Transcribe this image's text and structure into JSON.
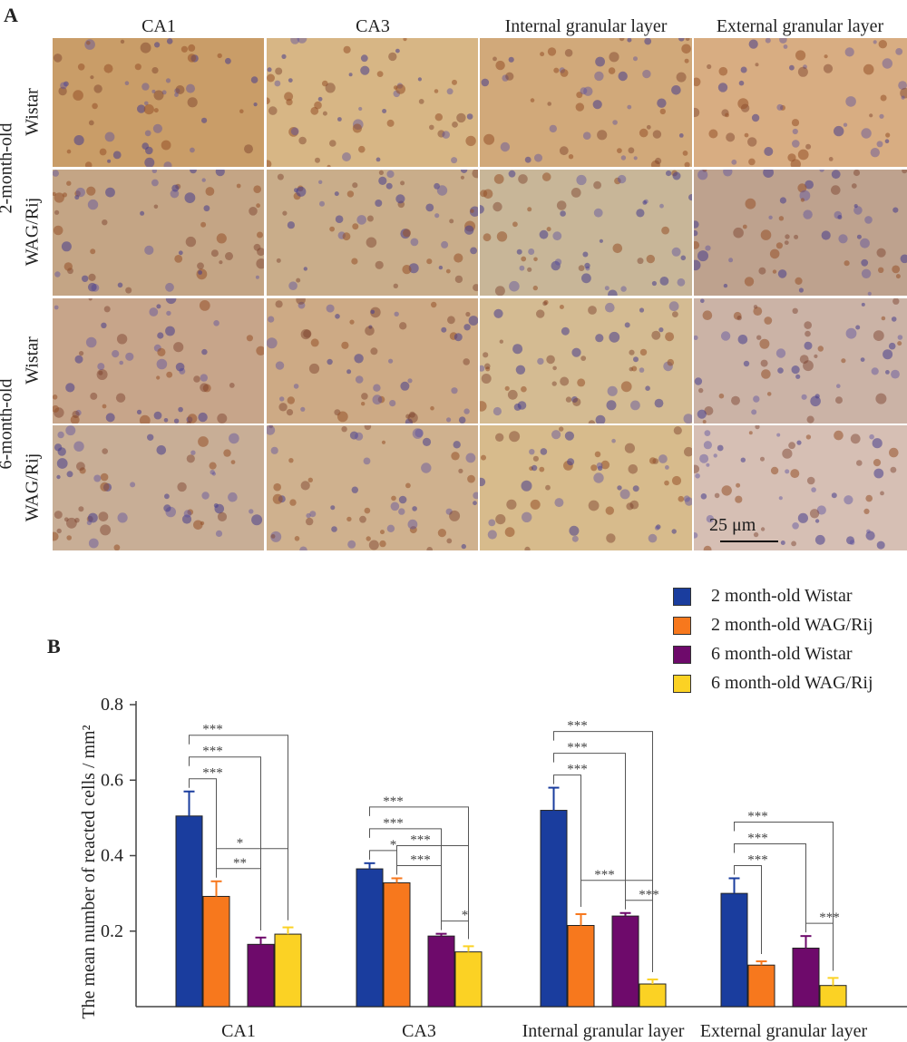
{
  "panel_a": {
    "letter": "A",
    "column_headers": [
      "CA1",
      "CA3",
      "Internal granular layer",
      "External granular layer"
    ],
    "age_groups": [
      "2-month-old",
      "6-month-old"
    ],
    "row_labels": [
      "Wistar",
      "WAG/Rij",
      "Wistar",
      "WAG/Rij"
    ],
    "scale_bar": "25 μm"
  },
  "panel_b": {
    "letter": "B"
  },
  "chart_data": {
    "type": "bar",
    "ylabel": "The mean number of reacted cells / mm²",
    "ylim": [
      0,
      0.8
    ],
    "yticks": [
      "0.2",
      "0.4",
      "0.6",
      "0.8"
    ],
    "categories": [
      "CA1",
      "CA3",
      "Internal granular layer",
      "External granular layer"
    ],
    "series": [
      {
        "name": "2 month-old Wistar",
        "color": "#1a3d9e",
        "values": [
          0.505,
          0.365,
          0.52,
          0.3
        ],
        "errors": [
          0.065,
          0.015,
          0.06,
          0.04
        ]
      },
      {
        "name": "2 month-old WAG/Rij",
        "color": "#f7781d",
        "values": [
          0.292,
          0.328,
          0.215,
          0.11
        ],
        "errors": [
          0.04,
          0.012,
          0.03,
          0.01
        ]
      },
      {
        "name": "6 month-old Wistar",
        "color": "#6e0a6b",
        "values": [
          0.165,
          0.187,
          0.24,
          0.155
        ],
        "errors": [
          0.018,
          0.006,
          0.008,
          0.032
        ]
      },
      {
        "name": "6 month-old WAG/Rij",
        "color": "#fbd224",
        "values": [
          0.192,
          0.145,
          0.06,
          0.056
        ],
        "errors": [
          0.018,
          0.015,
          0.012,
          0.02
        ]
      }
    ],
    "legend_position": "top-right",
    "significance": [
      {
        "category": 0,
        "from": 0,
        "to": 1,
        "label": "***"
      },
      {
        "category": 0,
        "from": 0,
        "to": 2,
        "label": "***"
      },
      {
        "category": 0,
        "from": 0,
        "to": 3,
        "label": "***"
      },
      {
        "category": 0,
        "from": 1,
        "to": 2,
        "label": "**"
      },
      {
        "category": 0,
        "from": 1,
        "to": 3,
        "label": "*"
      },
      {
        "category": 1,
        "from": 0,
        "to": 1,
        "label": "*"
      },
      {
        "category": 1,
        "from": 0,
        "to": 2,
        "label": "***"
      },
      {
        "category": 1,
        "from": 0,
        "to": 3,
        "label": "***"
      },
      {
        "category": 1,
        "from": 1,
        "to": 2,
        "label": "***"
      },
      {
        "category": 1,
        "from": 1,
        "to": 3,
        "label": "***"
      },
      {
        "category": 1,
        "from": 2,
        "to": 3,
        "label": "*"
      },
      {
        "category": 2,
        "from": 0,
        "to": 1,
        "label": "***"
      },
      {
        "category": 2,
        "from": 0,
        "to": 2,
        "label": "***"
      },
      {
        "category": 2,
        "from": 0,
        "to": 3,
        "label": "***"
      },
      {
        "category": 2,
        "from": 1,
        "to": 3,
        "label": "***"
      },
      {
        "category": 2,
        "from": 2,
        "to": 3,
        "label": "***"
      },
      {
        "category": 3,
        "from": 0,
        "to": 1,
        "label": "***"
      },
      {
        "category": 3,
        "from": 0,
        "to": 2,
        "label": "***"
      },
      {
        "category": 3,
        "from": 0,
        "to": 3,
        "label": "***"
      },
      {
        "category": 3,
        "from": 2,
        "to": 3,
        "label": "***"
      }
    ]
  }
}
